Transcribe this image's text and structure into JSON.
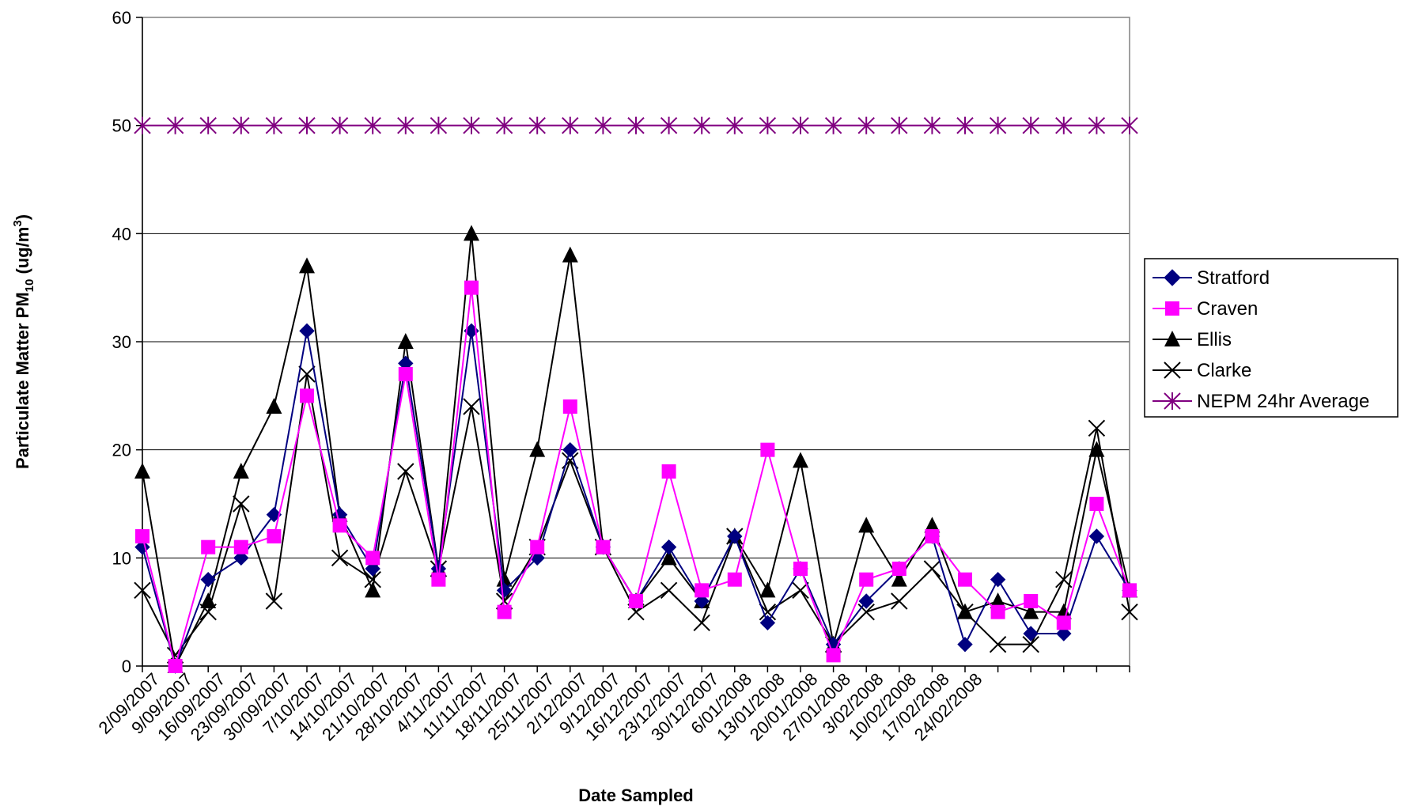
{
  "chart_data": {
    "type": "line",
    "title": "",
    "xlabel": "Date Sampled",
    "ylabel_main": "Particulate Matter PM",
    "ylabel_sub": "10",
    "ylabel_unit": "(ug/m",
    "ylabel_unit_sup": "3",
    "ylabel_unit_close": ")",
    "ylim": [
      0,
      60
    ],
    "yticks": [
      "0",
      "10",
      "20",
      "30",
      "40",
      "50",
      "60"
    ],
    "grid": "horizontal",
    "legend_position": "right",
    "x_tick_labels": [
      "2/09/2007",
      "9/09/2007",
      "16/09/2007",
      "23/09/2007",
      "30/09/2007",
      "7/10/2007",
      "14/10/2007",
      "21/10/2007",
      "28/10/2007",
      "4/11/2007",
      "11/11/2007",
      "18/11/2007",
      "25/11/2007",
      "2/12/2007",
      "9/12/2007",
      "16/12/2007",
      "23/12/2007",
      "30/12/2007",
      "6/01/2008",
      "13/01/2008",
      "20/01/2008",
      "27/01/2008",
      "3/02/2008",
      "10/02/2008",
      "17/02/2008",
      "24/02/2008"
    ],
    "n_points": 31,
    "series": [
      {
        "name": "Stratford",
        "color": "#000080",
        "marker": "diamond",
        "values": [
          11,
          0,
          8,
          10,
          14,
          31,
          14,
          9,
          28,
          9,
          31,
          7,
          10,
          20,
          11,
          6,
          11,
          6,
          12,
          4,
          9,
          2,
          6,
          9,
          12,
          2,
          8,
          3,
          3,
          12,
          7
        ]
      },
      {
        "name": "Craven",
        "color": "#FF00FF",
        "marker": "square",
        "values": [
          12,
          0,
          11,
          11,
          12,
          25,
          13,
          10,
          27,
          8,
          35,
          5,
          11,
          24,
          11,
          6,
          18,
          7,
          8,
          20,
          9,
          1,
          8,
          9,
          12,
          8,
          5,
          6,
          4,
          15,
          7
        ]
      },
      {
        "name": "Ellis",
        "color": "#000000",
        "marker": "triangle",
        "values": [
          18,
          0,
          6,
          18,
          24,
          37,
          14,
          7,
          30,
          9,
          40,
          8,
          20,
          38,
          11,
          6,
          10,
          6,
          12,
          7,
          19,
          2,
          13,
          8,
          13,
          5,
          6,
          5,
          5,
          20,
          7
        ]
      },
      {
        "name": "Clarke",
        "color": "#000000",
        "marker": "x",
        "values": [
          7,
          1,
          5,
          15,
          6,
          27,
          10,
          8,
          18,
          9,
          24,
          6,
          11,
          19,
          11,
          5,
          7,
          4,
          12,
          5,
          7,
          2,
          5,
          6,
          9,
          5,
          2,
          2,
          8,
          22,
          5
        ]
      },
      {
        "name": "NEPM 24hr Average",
        "color": "#800080",
        "marker": "asterisk",
        "values": [
          50,
          50,
          50,
          50,
          50,
          50,
          50,
          50,
          50,
          50,
          50,
          50,
          50,
          50,
          50,
          50,
          50,
          50,
          50,
          50,
          50,
          50,
          50,
          50,
          50,
          50,
          50,
          50,
          50,
          50,
          50
        ]
      }
    ]
  }
}
